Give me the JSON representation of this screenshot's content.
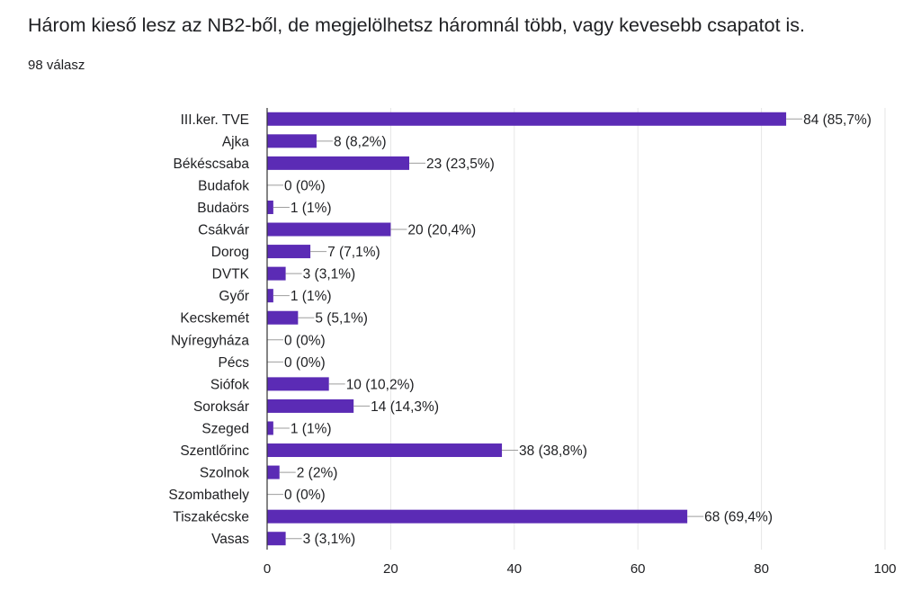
{
  "question": {
    "title": "Három kieső lesz az NB2-ből, de megjelölhetsz háromnál több, vagy kevesebb csapatot is.",
    "response_count": "98 válasz"
  },
  "colors": {
    "bar": "#5b2bb5",
    "grid": "#e6e6e6",
    "axis": "#333333",
    "text": "#202124"
  },
  "chart_data": {
    "type": "bar",
    "orientation": "horizontal",
    "categories": [
      "III.ker. TVE",
      "Ajka",
      "Békéscsaba",
      "Budafok",
      "Budaörs",
      "Csákvár",
      "Dorog",
      "DVTK",
      "Győr",
      "Kecskemét",
      "Nyíregyháza",
      "Pécs",
      "Siófok",
      "Soroksár",
      "Szeged",
      "Szentlőrinc",
      "Szolnok",
      "Szombathely",
      "Tiszakécske",
      "Vasas"
    ],
    "values": [
      84,
      8,
      23,
      0,
      1,
      20,
      7,
      3,
      1,
      5,
      0,
      0,
      10,
      14,
      1,
      38,
      2,
      0,
      68,
      3
    ],
    "data_labels": [
      "84 (85,7%)",
      "8 (8,2%)",
      "23 (23,5%)",
      "0 (0%)",
      "1 (1%)",
      "20 (20,4%)",
      "7 (7,1%)",
      "3 (3,1%)",
      "1 (1%)",
      "5 (5,1%)",
      "0 (0%)",
      "0 (0%)",
      "10 (10,2%)",
      "14 (14,3%)",
      "1 (1%)",
      "38 (38,8%)",
      "2 (2%)",
      "0 (0%)",
      "68 (69,4%)",
      "3 (3,1%)"
    ],
    "xlim": [
      0,
      100
    ],
    "xticks": [
      0,
      20,
      40,
      60,
      80,
      100
    ],
    "grid": true
  }
}
